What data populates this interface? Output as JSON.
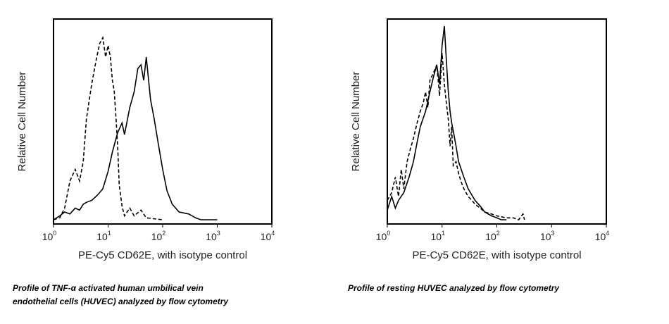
{
  "chart_data": [
    {
      "type": "line",
      "xlabel": "PE-Cy5 CD62E, with isotype control",
      "ylabel": "Relative Cell Number",
      "x_scale": "log",
      "xlim": [
        1,
        10000
      ],
      "x_ticks": [
        {
          "base": "10",
          "exp": "0"
        },
        {
          "base": "10",
          "exp": "1"
        },
        {
          "base": "10",
          "exp": "2"
        },
        {
          "base": "10",
          "exp": "3"
        },
        {
          "base": "10",
          "exp": "4"
        }
      ],
      "ylim": [
        0,
        1
      ],
      "grid": false,
      "series": [
        {
          "style": "dashed",
          "x": [
            1,
            1.3,
            1.6,
            2,
            2.5,
            3,
            3.5,
            4,
            5,
            6,
            7,
            8,
            9,
            10,
            11,
            12,
            13,
            14,
            15,
            16,
            18,
            20,
            25,
            30,
            40,
            50,
            100
          ],
          "y": [
            0,
            0.01,
            0.06,
            0.2,
            0.26,
            0.2,
            0.3,
            0.52,
            0.7,
            0.82,
            0.91,
            0.94,
            0.84,
            0.9,
            0.84,
            0.72,
            0.66,
            0.52,
            0.38,
            0.18,
            0.07,
            0.02,
            0.06,
            0.02,
            0.05,
            0.01,
            0.0
          ]
        },
        {
          "style": "solid",
          "x": [
            1,
            1.3,
            1.6,
            2,
            2.5,
            3,
            3.5,
            4,
            5,
            6,
            7,
            8,
            10,
            12,
            15,
            18,
            20,
            25,
            30,
            35,
            40,
            45,
            50,
            60,
            70,
            80,
            100,
            120,
            150,
            200,
            300,
            400,
            500,
            1000
          ],
          "y": [
            0,
            0.02,
            0.04,
            0.03,
            0.06,
            0.05,
            0.08,
            0.09,
            0.1,
            0.12,
            0.14,
            0.16,
            0.25,
            0.35,
            0.45,
            0.5,
            0.44,
            0.58,
            0.66,
            0.78,
            0.8,
            0.72,
            0.84,
            0.62,
            0.52,
            0.42,
            0.26,
            0.15,
            0.08,
            0.04,
            0.03,
            0.01,
            0.0,
            0.0
          ]
        }
      ]
    },
    {
      "type": "line",
      "xlabel": "PE-Cy5 CD62E, with isotype control",
      "ylabel": "Relative Cell Number",
      "x_scale": "log",
      "xlim": [
        1,
        10000
      ],
      "x_ticks": [
        {
          "base": "10",
          "exp": "0"
        },
        {
          "base": "10",
          "exp": "1"
        },
        {
          "base": "10",
          "exp": "2"
        },
        {
          "base": "10",
          "exp": "3"
        },
        {
          "base": "10",
          "exp": "4"
        }
      ],
      "ylim": [
        0,
        1
      ],
      "grid": false,
      "series": [
        {
          "style": "dashed",
          "x": [
            1,
            1.2,
            1.4,
            1.6,
            1.8,
            2,
            2.3,
            2.6,
            3,
            3.5,
            4,
            4.5,
            5,
            5.5,
            6,
            7,
            8,
            9,
            10,
            11,
            12,
            13,
            14,
            15,
            16,
            18,
            20,
            22,
            25,
            30,
            35,
            40,
            50,
            60,
            80,
            100,
            150,
            200,
            250,
            300,
            320
          ],
          "y": [
            0.1,
            0.14,
            0.22,
            0.12,
            0.26,
            0.16,
            0.3,
            0.36,
            0.42,
            0.5,
            0.56,
            0.6,
            0.66,
            0.58,
            0.72,
            0.76,
            0.8,
            0.64,
            0.86,
            0.7,
            0.6,
            0.52,
            0.38,
            0.48,
            0.28,
            0.3,
            0.24,
            0.2,
            0.16,
            0.12,
            0.1,
            0.08,
            0.06,
            0.04,
            0.03,
            0.02,
            0.01,
            0.01,
            0.0,
            0.03,
            0.0
          ]
        },
        {
          "style": "solid",
          "x": [
            1,
            1.2,
            1.4,
            1.6,
            2,
            2.5,
            3,
            3.5,
            4,
            5,
            6,
            7,
            8,
            9,
            10,
            11,
            12,
            13,
            14,
            15,
            16,
            18,
            20,
            25,
            30,
            40,
            50,
            60,
            80,
            100,
            120,
            150
          ],
          "y": [
            0.05,
            0.12,
            0.06,
            0.1,
            0.14,
            0.22,
            0.3,
            0.4,
            0.48,
            0.56,
            0.66,
            0.74,
            0.8,
            0.7,
            0.9,
            1.0,
            0.82,
            0.66,
            0.56,
            0.5,
            0.46,
            0.38,
            0.3,
            0.22,
            0.16,
            0.1,
            0.07,
            0.04,
            0.02,
            0.01,
            0.0,
            0.0
          ]
        }
      ]
    }
  ],
  "captions": [
    "Profile of TNF-α activated human umbilical vein\nendothelial cells (HUVEC) analyzed by flow cytometry",
    "Profile of resting HUVEC analyzed by flow cytometry"
  ]
}
